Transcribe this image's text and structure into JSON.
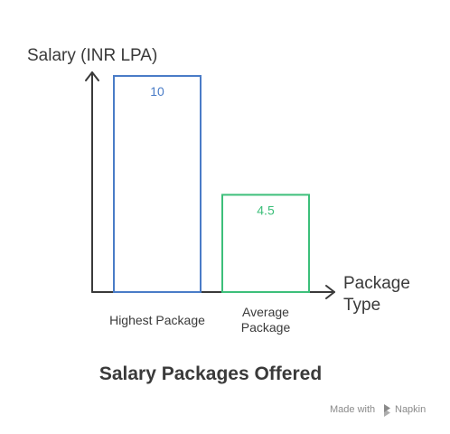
{
  "chart_data": {
    "type": "bar",
    "title": "Salary Packages Offered",
    "ylabel": "Salary (INR LPA)",
    "xlabel": [
      "Package",
      "Type"
    ],
    "categories": [
      [
        "Highest Package"
      ],
      [
        "Average",
        "Package"
      ]
    ],
    "values": [
      10,
      4.5
    ],
    "value_labels": [
      "10",
      "4.5"
    ],
    "colors": [
      "#4a7cc7",
      "#3dbf7a"
    ],
    "ylim": [
      0,
      10
    ],
    "grid": false,
    "legend": "none"
  },
  "credit": {
    "made_with": "Made with",
    "brand": "Napkin"
  }
}
